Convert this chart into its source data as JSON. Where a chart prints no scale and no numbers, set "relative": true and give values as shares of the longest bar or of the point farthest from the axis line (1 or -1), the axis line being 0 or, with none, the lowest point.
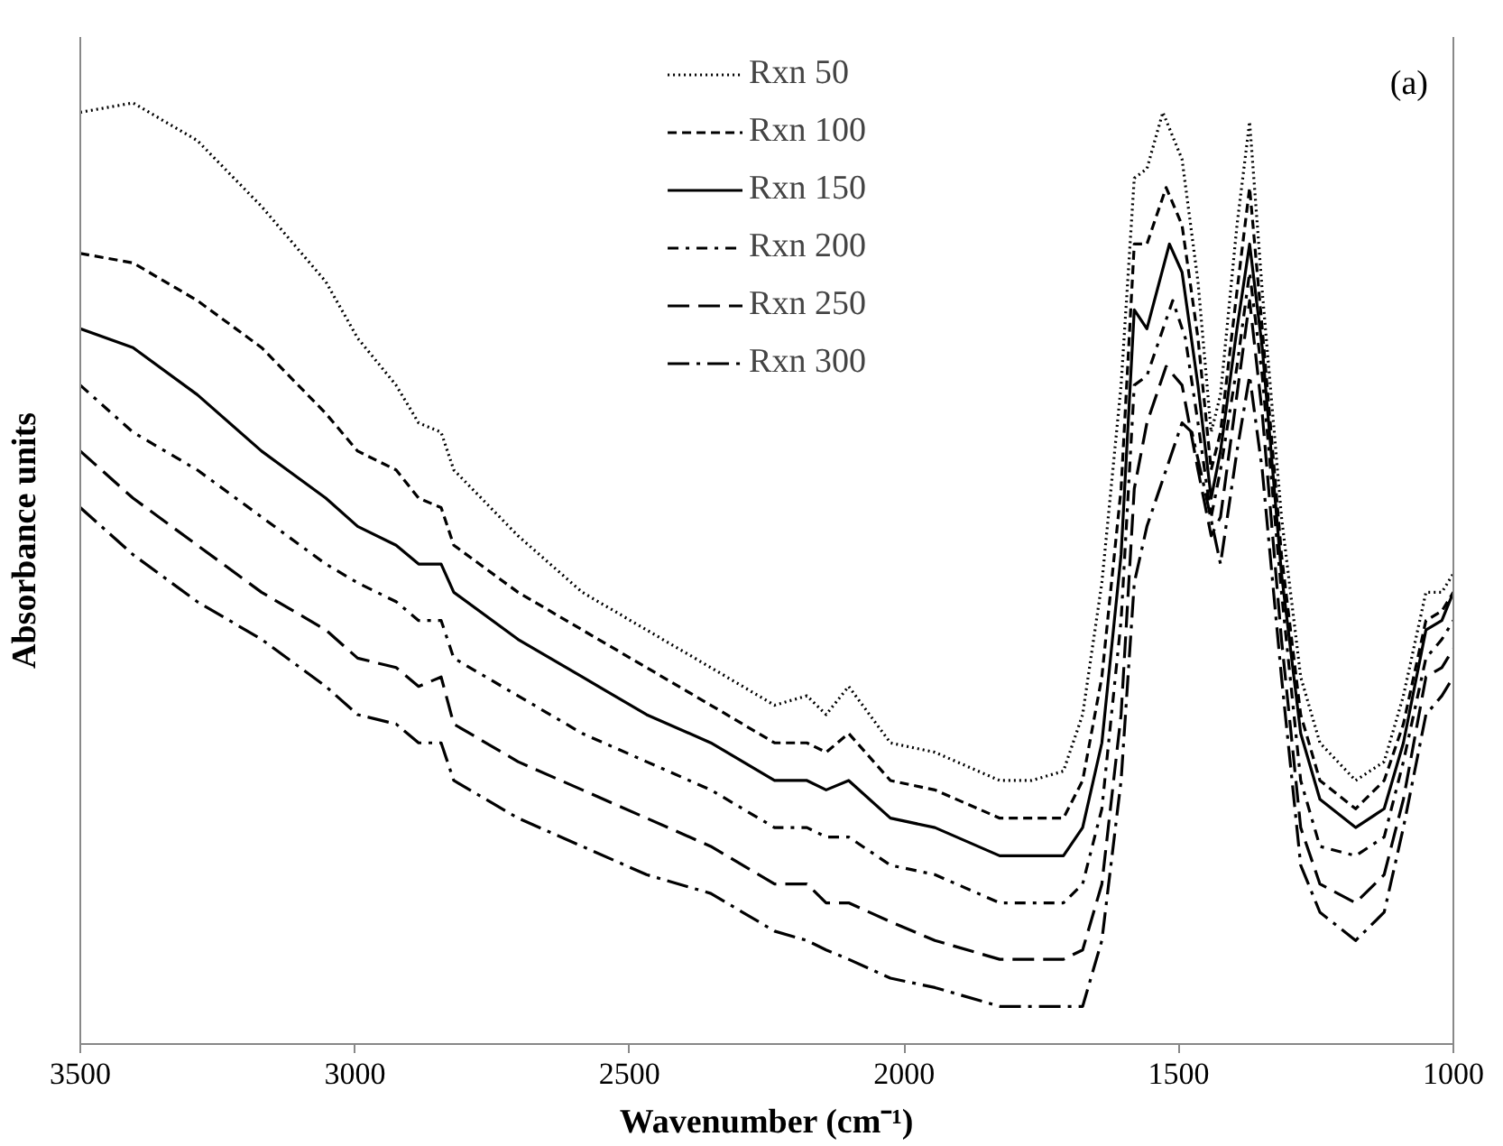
{
  "chart_data": {
    "type": "line",
    "relative": true,
    "xlabel": "Wavenumber (cm⁻¹)",
    "ylabel": "Absorbance units",
    "xlim": [
      3500,
      1000
    ],
    "xticks": [
      3500,
      3000,
      2500,
      2000,
      1500,
      1000
    ],
    "grid": false,
    "legend": "top",
    "annotations": [
      "(a)"
    ],
    "series": [
      {
        "name": "Rxn 50",
        "color": "#000000",
        "line_style": "dotted",
        "x": [
          3500,
          3404,
          3287,
          3170,
          3053,
          2995,
          2925,
          2884,
          2843,
          2820,
          2703,
          2586,
          2469,
          2352,
          2236,
          2177,
          2142,
          2101,
          2025,
          1944,
          1826,
          1768,
          1710,
          1675,
          1640,
          1605,
          1581,
          1558,
          1529,
          1494,
          1465,
          1441,
          1424,
          1394,
          1371,
          1348,
          1313,
          1278,
          1243,
          1178,
          1126,
          1091,
          1050,
          1021,
          1000
        ],
        "values": [
          0.99,
          1.0,
          0.96,
          0.89,
          0.81,
          0.75,
          0.7,
          0.66,
          0.65,
          0.61,
          0.54,
          0.48,
          0.44,
          0.4,
          0.36,
          0.37,
          0.35,
          0.38,
          0.32,
          0.31,
          0.28,
          0.28,
          0.29,
          0.35,
          0.49,
          0.7,
          0.92,
          0.93,
          0.99,
          0.94,
          0.81,
          0.65,
          0.69,
          0.87,
          0.98,
          0.8,
          0.56,
          0.39,
          0.32,
          0.28,
          0.3,
          0.37,
          0.48,
          0.48,
          0.5
        ]
      },
      {
        "name": "Rxn 100",
        "color": "#000000",
        "line_style": "dashed",
        "x": [
          3500,
          3404,
          3287,
          3170,
          3053,
          2995,
          2925,
          2884,
          2843,
          2820,
          2703,
          2586,
          2469,
          2352,
          2236,
          2177,
          2142,
          2101,
          2025,
          1944,
          1826,
          1768,
          1710,
          1675,
          1640,
          1605,
          1581,
          1558,
          1523,
          1494,
          1465,
          1441,
          1424,
          1394,
          1371,
          1348,
          1313,
          1278,
          1243,
          1178,
          1126,
          1091,
          1050,
          1021,
          1000
        ],
        "values": [
          0.84,
          0.83,
          0.79,
          0.74,
          0.67,
          0.63,
          0.61,
          0.58,
          0.57,
          0.53,
          0.48,
          0.44,
          0.4,
          0.36,
          0.32,
          0.32,
          0.31,
          0.33,
          0.28,
          0.27,
          0.24,
          0.24,
          0.24,
          0.28,
          0.39,
          0.59,
          0.85,
          0.85,
          0.91,
          0.87,
          0.75,
          0.61,
          0.65,
          0.8,
          0.91,
          0.76,
          0.52,
          0.35,
          0.28,
          0.25,
          0.28,
          0.34,
          0.45,
          0.46,
          0.48
        ]
      },
      {
        "name": "Rxn 150",
        "color": "#000000",
        "line_style": "solid",
        "x": [
          3500,
          3404,
          3287,
          3170,
          3053,
          2995,
          2925,
          2884,
          2843,
          2820,
          2703,
          2586,
          2469,
          2352,
          2236,
          2177,
          2142,
          2101,
          2025,
          1944,
          1826,
          1768,
          1710,
          1675,
          1640,
          1605,
          1581,
          1558,
          1517,
          1494,
          1465,
          1441,
          1424,
          1394,
          1371,
          1348,
          1313,
          1278,
          1243,
          1178,
          1126,
          1091,
          1050,
          1021,
          1000
        ],
        "values": [
          0.76,
          0.74,
          0.69,
          0.63,
          0.58,
          0.55,
          0.53,
          0.51,
          0.51,
          0.48,
          0.43,
          0.39,
          0.35,
          0.32,
          0.28,
          0.28,
          0.27,
          0.28,
          0.24,
          0.23,
          0.2,
          0.2,
          0.2,
          0.23,
          0.32,
          0.52,
          0.78,
          0.76,
          0.85,
          0.82,
          0.7,
          0.58,
          0.63,
          0.76,
          0.85,
          0.74,
          0.5,
          0.33,
          0.26,
          0.23,
          0.25,
          0.32,
          0.44,
          0.45,
          0.48
        ]
      },
      {
        "name": "Rxn 200",
        "color": "#000000",
        "line_style": "dashdot",
        "x": [
          3500,
          3404,
          3287,
          3170,
          3053,
          2995,
          2925,
          2884,
          2843,
          2820,
          2703,
          2586,
          2469,
          2352,
          2236,
          2177,
          2142,
          2101,
          2025,
          1944,
          1826,
          1768,
          1710,
          1675,
          1640,
          1605,
          1581,
          1558,
          1511,
          1488,
          1465,
          1441,
          1424,
          1394,
          1371,
          1348,
          1313,
          1278,
          1243,
          1178,
          1126,
          1091,
          1050,
          1021,
          1000
        ],
        "values": [
          0.7,
          0.65,
          0.61,
          0.56,
          0.51,
          0.49,
          0.47,
          0.45,
          0.45,
          0.41,
          0.37,
          0.33,
          0.3,
          0.27,
          0.23,
          0.23,
          0.22,
          0.22,
          0.19,
          0.18,
          0.15,
          0.15,
          0.15,
          0.17,
          0.25,
          0.45,
          0.7,
          0.71,
          0.79,
          0.75,
          0.66,
          0.56,
          0.61,
          0.72,
          0.82,
          0.71,
          0.48,
          0.28,
          0.21,
          0.2,
          0.22,
          0.3,
          0.41,
          0.43,
          0.45
        ]
      },
      {
        "name": "Rxn 250",
        "color": "#000000",
        "line_style": "longdash",
        "x": [
          3500,
          3404,
          3287,
          3170,
          3053,
          2995,
          2925,
          2884,
          2843,
          2820,
          2703,
          2586,
          2469,
          2352,
          2236,
          2177,
          2142,
          2101,
          2025,
          1944,
          1826,
          1768,
          1710,
          1675,
          1640,
          1605,
          1581,
          1558,
          1523,
          1494,
          1465,
          1441,
          1424,
          1394,
          1371,
          1348,
          1313,
          1278,
          1243,
          1178,
          1126,
          1091,
          1050,
          1021,
          1000
        ],
        "values": [
          0.63,
          0.58,
          0.53,
          0.48,
          0.44,
          0.41,
          0.4,
          0.38,
          0.39,
          0.34,
          0.3,
          0.27,
          0.24,
          0.21,
          0.17,
          0.17,
          0.15,
          0.15,
          0.13,
          0.11,
          0.09,
          0.09,
          0.09,
          0.1,
          0.17,
          0.35,
          0.59,
          0.66,
          0.72,
          0.7,
          0.61,
          0.54,
          0.56,
          0.69,
          0.79,
          0.67,
          0.43,
          0.23,
          0.17,
          0.15,
          0.18,
          0.26,
          0.39,
          0.4,
          0.42
        ]
      },
      {
        "name": "Rxn 300",
        "color": "#000000",
        "line_style": "longdashdot",
        "x": [
          3500,
          3404,
          3287,
          3170,
          3053,
          2995,
          2925,
          2884,
          2843,
          2820,
          2703,
          2586,
          2469,
          2352,
          2236,
          2177,
          2142,
          2101,
          2025,
          1944,
          1826,
          1768,
          1710,
          1675,
          1640,
          1605,
          1581,
          1558,
          1494,
          1476,
          1453,
          1424,
          1394,
          1371,
          1348,
          1313,
          1278,
          1243,
          1178,
          1126,
          1091,
          1050,
          1021,
          1000
        ],
        "values": [
          0.57,
          0.52,
          0.47,
          0.43,
          0.38,
          0.35,
          0.34,
          0.32,
          0.32,
          0.28,
          0.24,
          0.21,
          0.18,
          0.16,
          0.12,
          0.11,
          0.1,
          0.09,
          0.07,
          0.06,
          0.04,
          0.04,
          0.04,
          0.04,
          0.11,
          0.28,
          0.49,
          0.55,
          0.66,
          0.65,
          0.59,
          0.51,
          0.63,
          0.71,
          0.61,
          0.39,
          0.19,
          0.14,
          0.11,
          0.14,
          0.23,
          0.35,
          0.37,
          0.39
        ]
      }
    ]
  }
}
